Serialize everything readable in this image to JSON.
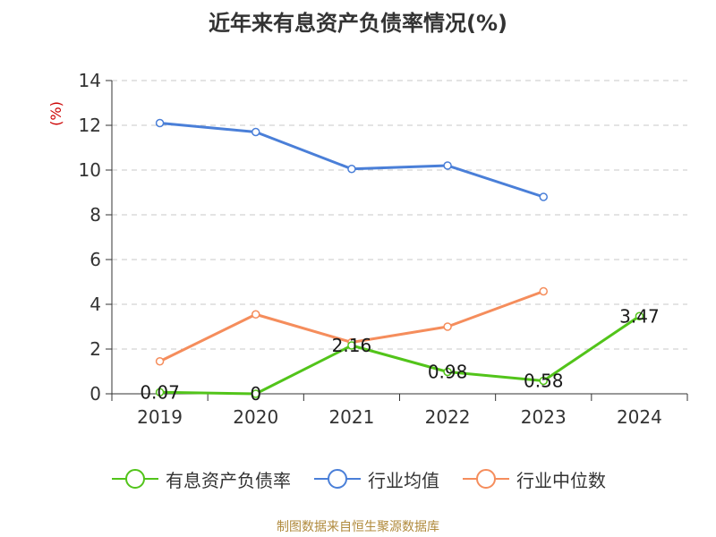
{
  "chart_data": {
    "type": "line",
    "title": "近年来有息资产负债率情况(%)",
    "ylabel": "(%)",
    "xlabel": "",
    "categories": [
      "2019",
      "2020",
      "2021",
      "2022",
      "2023",
      "2024"
    ],
    "ylim": [
      0,
      14
    ],
    "yticks": [
      0,
      2,
      4,
      6,
      8,
      10,
      12,
      14
    ],
    "grid": true,
    "legend_position": "bottom",
    "series": [
      {
        "name": "有息资产负债率",
        "color": "#52c41a",
        "values": [
          0.07,
          0,
          2.16,
          0.98,
          0.58,
          3.47
        ],
        "labels": [
          "0.07",
          "0",
          "2.16",
          "0.98",
          "0.58",
          "3.47"
        ]
      },
      {
        "name": "行业均值",
        "color": "#4a7fd8",
        "values": [
          12.1,
          11.7,
          10.05,
          10.2,
          8.8,
          null
        ]
      },
      {
        "name": "行业中位数",
        "color": "#f58d5c",
        "values": [
          1.45,
          3.55,
          2.3,
          3.0,
          4.58,
          null
        ]
      }
    ],
    "source": "制图数据来自恒生聚源数据库"
  }
}
